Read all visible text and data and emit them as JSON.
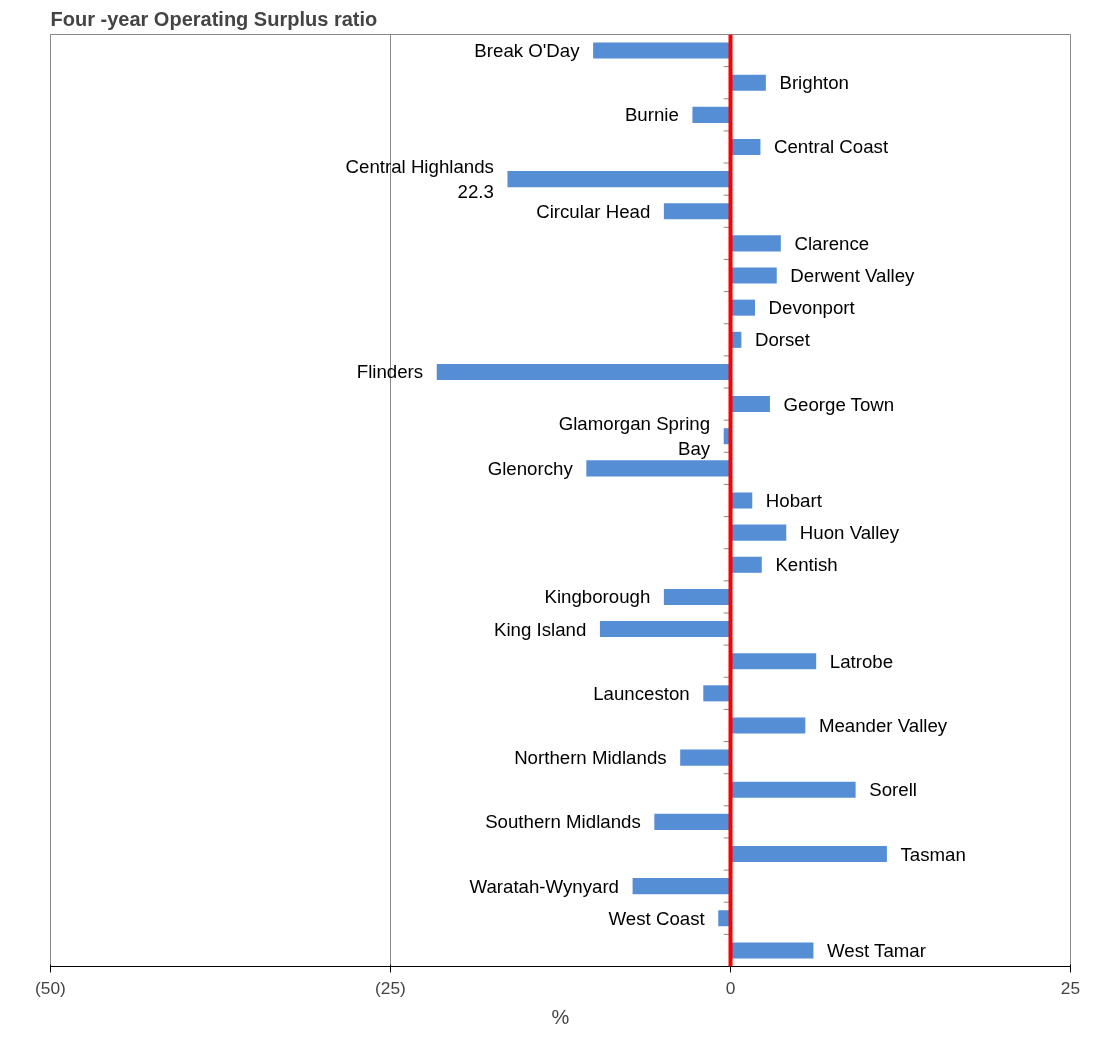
{
  "chart_data": {
    "type": "bar",
    "orientation": "horizontal",
    "title": "Four -year Operating Surplus ratio",
    "xlabel": "%",
    "categories": [
      "Break O'Day",
      "Brighton",
      "Burnie",
      "Central Coast",
      "Central Highlands 22.3",
      "Circular Head",
      "Clarence",
      "Derwent Valley",
      "Devonport",
      "Dorset",
      "Flinders",
      "George Town",
      "Glamorgan Spring Bay",
      "Glenorchy",
      "Hobart",
      "Huon Valley",
      "Kentish",
      "Kingborough",
      "King Island",
      "Latrobe",
      "Launceston",
      "Meander Valley",
      "Northern Midlands",
      "Sorell",
      "Southern Midlands",
      "Tasman",
      "Waratah-Wynyard",
      "West Coast",
      "West Tamar"
    ],
    "values": [
      -10.1,
      2.6,
      -2.8,
      2.2,
      -16.4,
      -4.9,
      3.7,
      3.4,
      1.8,
      0.8,
      -21.6,
      2.9,
      -0.5,
      -10.6,
      1.6,
      4.1,
      2.3,
      -4.9,
      -9.6,
      6.3,
      -2.0,
      5.5,
      -3.7,
      9.2,
      -5.6,
      11.5,
      -7.2,
      -0.9,
      6.1
    ],
    "color": "#558ed5",
    "xlim": [
      -50,
      25
    ],
    "xticks": [
      {
        "value": -50,
        "label": "(50)"
      },
      {
        "value": -25,
        "label": "(25)"
      },
      0,
      25
    ],
    "grid": "x",
    "ref_lines": [
      {
        "axis": "x",
        "value": 0,
        "color": "#ff0000"
      }
    ]
  }
}
